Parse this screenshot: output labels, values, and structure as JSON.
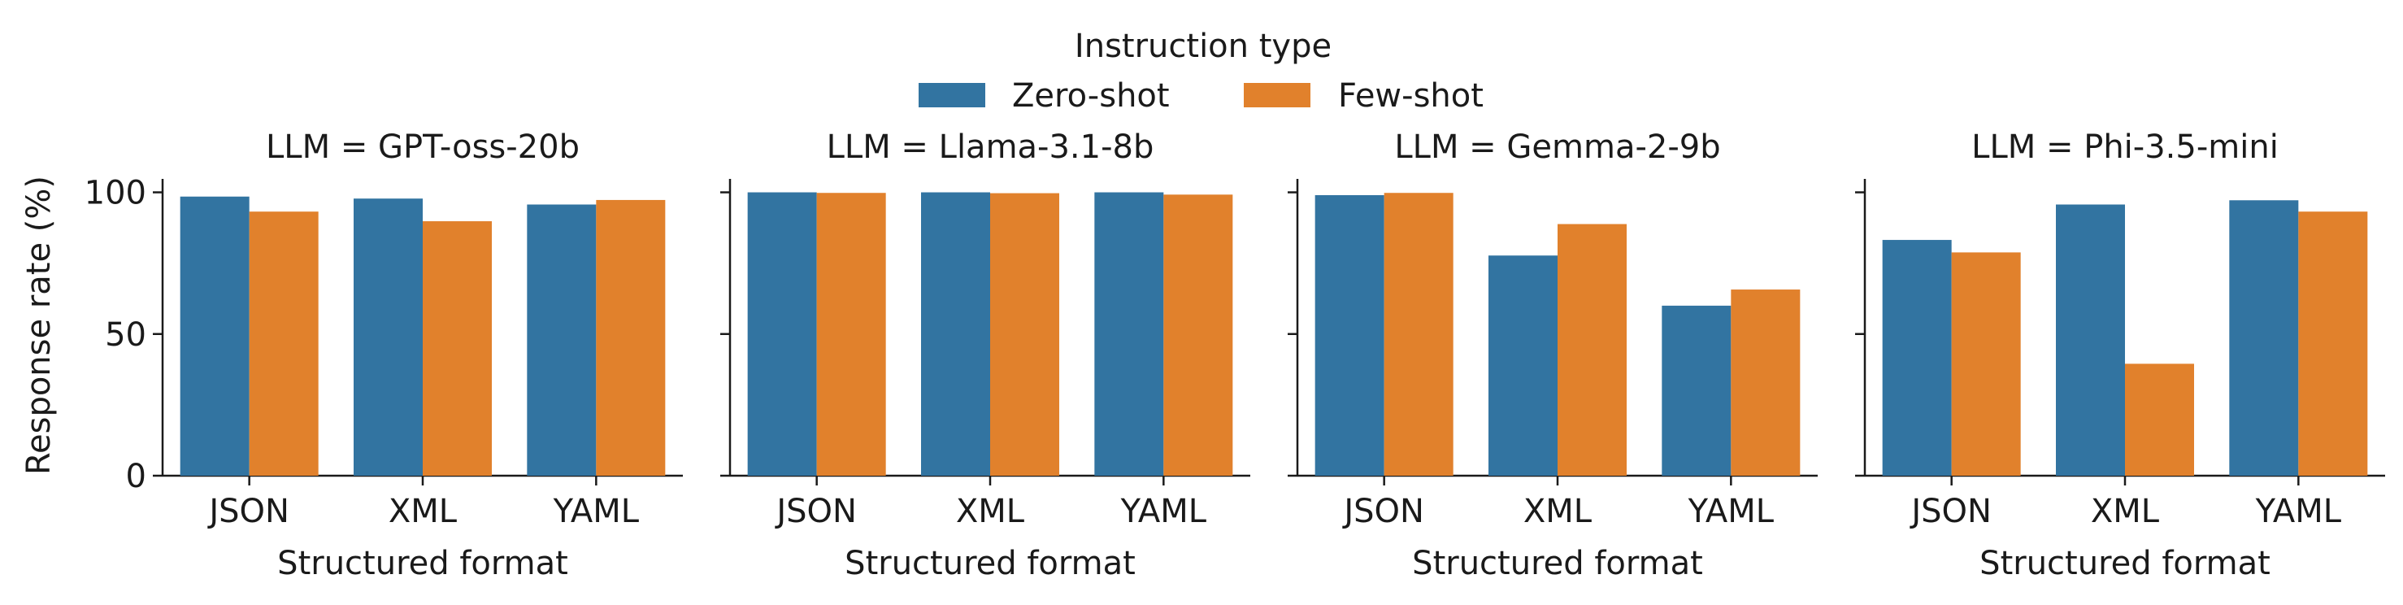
{
  "legend": {
    "title": "Instruction type",
    "entries": [
      {
        "label": "Zero-shot",
        "color": "#3274a1"
      },
      {
        "label": "Few-shot",
        "color": "#e1812c"
      }
    ]
  },
  "chart_data": {
    "type": "bar",
    "ylabel": "Response rate (%)",
    "xlabel": "Structured format",
    "ylim": [
      0,
      100
    ],
    "yticks": [
      0,
      50,
      100
    ],
    "grid": false,
    "legend_position": "top-center",
    "facets": [
      {
        "title": "LLM = GPT-oss-20b",
        "categories": [
          "JSON",
          "XML",
          "YAML"
        ],
        "series": [
          {
            "name": "Zero-shot",
            "values": [
              98.5,
              97.8,
              95.7
            ]
          },
          {
            "name": "Few-shot",
            "values": [
              93.2,
              89.8,
              97.3
            ]
          }
        ]
      },
      {
        "title": "LLM = Llama-3.1-8b",
        "categories": [
          "JSON",
          "XML",
          "YAML"
        ],
        "series": [
          {
            "name": "Zero-shot",
            "values": [
              100.0,
              100.0,
              100.0
            ]
          },
          {
            "name": "Few-shot",
            "values": [
              99.8,
              99.7,
              99.2
            ]
          }
        ]
      },
      {
        "title": "LLM = Gemma-2-9b",
        "categories": [
          "JSON",
          "XML",
          "YAML"
        ],
        "series": [
          {
            "name": "Zero-shot",
            "values": [
              99.0,
              77.7,
              60.0
            ]
          },
          {
            "name": "Few-shot",
            "values": [
              99.8,
              88.8,
              65.7
            ]
          }
        ]
      },
      {
        "title": "LLM = Phi-3.5-mini",
        "categories": [
          "JSON",
          "XML",
          "YAML"
        ],
        "series": [
          {
            "name": "Zero-shot",
            "values": [
              83.2,
              95.7,
              97.2
            ]
          },
          {
            "name": "Few-shot",
            "values": [
              78.8,
              39.5,
              93.2
            ]
          }
        ]
      }
    ]
  }
}
